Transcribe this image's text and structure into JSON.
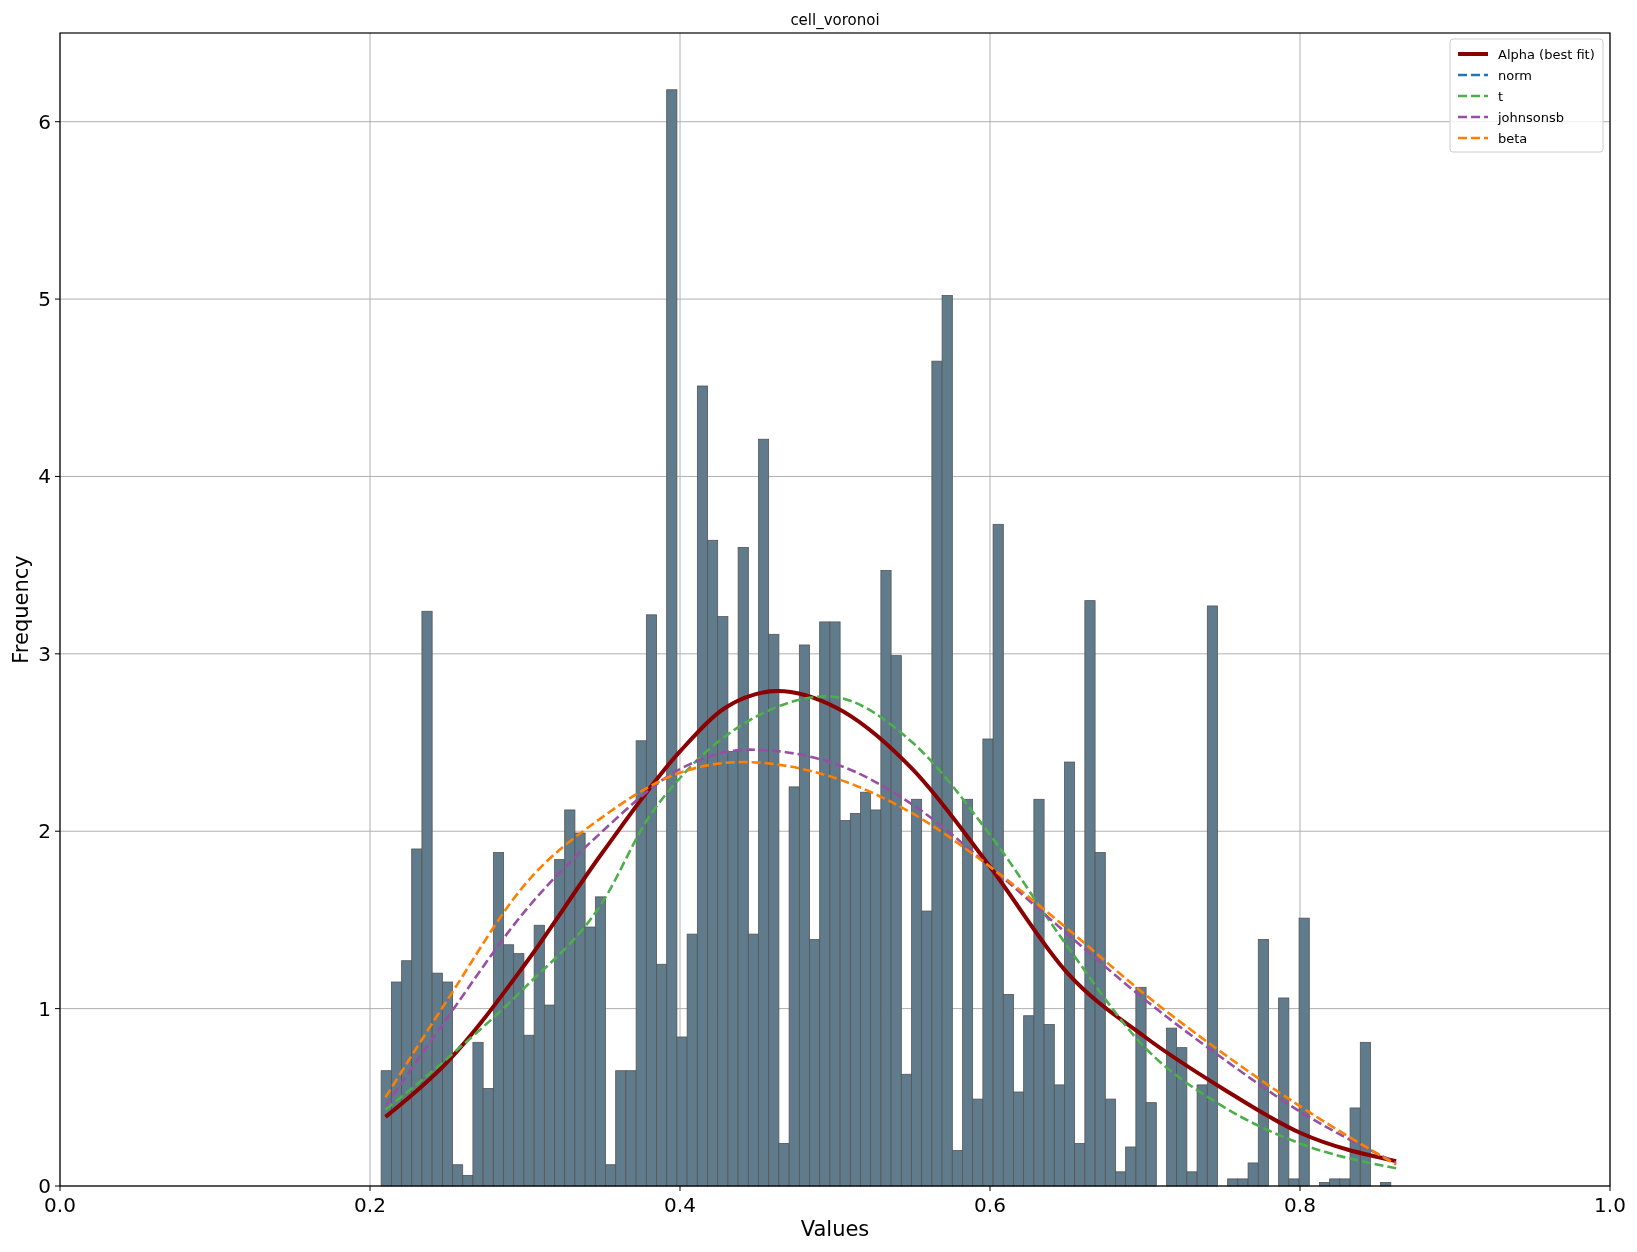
{
  "chart_data": {
    "type": "histogram",
    "title": "cell_voronoi",
    "xlabel": "Values",
    "ylabel": "Frequency",
    "xlim": [
      0,
      1
    ],
    "xticks": [
      {
        "value": 0,
        "label": "0.0"
      },
      {
        "value": 0.2,
        "label": "0.2"
      },
      {
        "value": 0.4,
        "label": "0.4"
      },
      {
        "value": 0.6,
        "label": "0.6"
      },
      {
        "value": 0.8,
        "label": "0.8"
      },
      {
        "value": 1,
        "label": "1.0"
      }
    ],
    "ylim": [
      0,
      6.5
    ],
    "yticks": [
      0,
      1,
      2,
      3,
      4,
      5,
      6
    ],
    "grid": true,
    "legend": "top right",
    "series": [
      {
        "color": "#607b8b",
        "bins": [
          0.2072,
          0.2138,
          0.2204,
          0.2269,
          0.2335,
          0.2401,
          0.2467,
          0.2533,
          0.2598,
          0.2664,
          0.273,
          0.2796,
          0.2862,
          0.2927,
          0.2993,
          0.3059,
          0.3125,
          0.3191,
          0.3256,
          0.3322,
          0.3388,
          0.3454,
          0.352,
          0.3585,
          0.3651,
          0.3717,
          0.3783,
          0.3849,
          0.3914,
          0.398,
          0.4046,
          0.4112,
          0.4178,
          0.4243,
          0.4309,
          0.4375,
          0.4441,
          0.4507,
          0.4572,
          0.4638,
          0.4704,
          0.477,
          0.4836,
          0.4901,
          0.4967,
          0.5033,
          0.5099,
          0.5165,
          0.523,
          0.5296,
          0.5362,
          0.5428,
          0.5494,
          0.5559,
          0.5625,
          0.5691,
          0.5757,
          0.5823,
          0.5888,
          0.5954,
          0.602,
          0.6086,
          0.6152,
          0.6217,
          0.6283,
          0.6349,
          0.6415,
          0.6481,
          0.6546,
          0.6612,
          0.6678,
          0.6744,
          0.681,
          0.6875,
          0.6941,
          0.7007,
          0.7073,
          0.7139,
          0.7204,
          0.727,
          0.7336,
          0.7402,
          0.7468,
          0.7533,
          0.7599,
          0.7665,
          0.7731,
          0.7797,
          0.7862,
          0.7928,
          0.7994,
          0.806,
          0.8126,
          0.8191,
          0.8257,
          0.8323,
          0.8389,
          0.8455,
          0.852,
          0.8586
        ],
        "values": [
          0.65,
          1.15,
          1.27,
          1.9,
          3.24,
          1.2,
          1.15,
          0.12,
          0.06,
          0.81,
          0.55,
          1.88,
          1.36,
          1.31,
          0.85,
          1.47,
          1.02,
          1.84,
          2.12,
          1.99,
          1.46,
          1.63,
          0.12,
          0.65,
          0.65,
          2.51,
          3.22,
          1.25,
          6.18,
          0.84,
          1.42,
          4.51,
          3.64,
          3.21,
          2.45,
          3.6,
          1.42,
          4.21,
          3.11,
          0.24,
          2.25,
          3.05,
          1.39,
          3.18,
          3.18,
          2.06,
          2.1,
          2.22,
          2.12,
          3.47,
          2.99,
          0.63,
          2.18,
          1.55,
          4.65,
          5.02,
          0.2,
          2.18,
          0.49,
          2.52,
          3.73,
          1.08,
          0.53,
          0.96,
          2.18,
          0.91,
          0.57,
          2.39,
          0.24,
          3.3,
          1.88,
          0.49,
          0.08,
          0.22,
          1.12,
          0.47,
          0,
          0.89,
          0.78,
          0.08,
          0.57,
          3.27,
          0,
          0.04,
          0.04,
          0.13,
          1.39,
          0,
          1.06,
          0.04,
          1.51,
          0,
          0.02,
          0.04,
          0.04,
          0.44,
          0.81,
          0,
          0.02
        ]
      },
      {
        "type": "line",
        "name": "Alpha (best fit)",
        "color": "#8b0000",
        "line_style": "solid",
        "x": [
          0.21,
          0.25,
          0.3,
          0.35,
          0.4,
          0.43,
          0.463,
          0.5,
          0.55,
          0.6,
          0.65,
          0.7,
          0.75,
          0.8,
          0.862
        ],
        "values": [
          0.39,
          0.7,
          1.25,
          1.88,
          2.45,
          2.7,
          2.79,
          2.7,
          2.35,
          1.8,
          1.2,
          0.84,
          0.55,
          0.3,
          0.14
        ]
      },
      {
        "type": "line",
        "name": "norm",
        "color": "#1f77b4",
        "line_style": "dashed"
      },
      {
        "type": "line",
        "name": "t",
        "color": "#4daf4a",
        "line_style": "dashed",
        "x": [
          0.21,
          0.25,
          0.3,
          0.35,
          0.38,
          0.4,
          0.45,
          0.495,
          0.55,
          0.6,
          0.65,
          0.7,
          0.75,
          0.8,
          0.862
        ],
        "values": [
          0.43,
          0.72,
          1.12,
          1.6,
          2.08,
          2.3,
          2.65,
          2.76,
          2.5,
          1.98,
          1.35,
          0.78,
          0.45,
          0.24,
          0.1
        ]
      },
      {
        "type": "line",
        "name": "johnsonsb",
        "color": "#984ea3",
        "line_style": "dashed",
        "x": [
          0.21,
          0.25,
          0.3,
          0.35,
          0.4,
          0.445,
          0.5,
          0.55,
          0.6,
          0.65,
          0.7,
          0.75,
          0.8,
          0.862
        ],
        "values": [
          0.45,
          0.95,
          1.55,
          2.0,
          2.35,
          2.46,
          2.38,
          2.15,
          1.8,
          1.42,
          1.05,
          0.72,
          0.42,
          0.13
        ]
      },
      {
        "type": "line",
        "name": "beta",
        "color": "#ff7f00",
        "line_style": "dashed",
        "x": [
          0.21,
          0.25,
          0.3,
          0.35,
          0.4,
          0.44,
          0.5,
          0.55,
          0.6,
          0.65,
          0.7,
          0.75,
          0.8,
          0.862
        ],
        "values": [
          0.5,
          1.05,
          1.7,
          2.08,
          2.33,
          2.39,
          2.3,
          2.1,
          1.8,
          1.45,
          1.08,
          0.75,
          0.45,
          0.12
        ]
      }
    ]
  }
}
